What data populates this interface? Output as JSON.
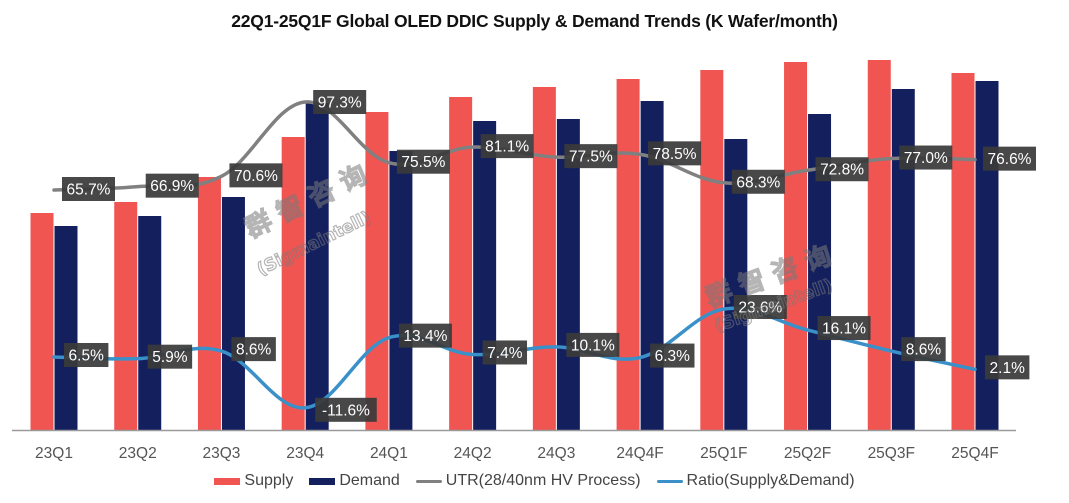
{
  "chart_data": {
    "type": "bar",
    "title": "22Q1-25Q1F Global OLED DDIC Supply & Demand Trends (K Wafer/month)",
    "xlabel": "",
    "ylabel": "",
    "grid": false,
    "legend_position": "bottom",
    "categories": [
      "23Q1",
      "23Q2",
      "23Q3",
      "23Q4",
      "24Q1",
      "24Q2",
      "24Q3",
      "24Q4F",
      "25Q1F",
      "25Q2F",
      "25Q3F",
      "25Q4F"
    ],
    "note": "Bar values are unlabeled in the source; values below are estimated relative heights (arbitrary units, baseline 0).",
    "ylim": [
      0,
      380
    ],
    "series": [
      {
        "name": "Supply",
        "type": "bar",
        "color": "#F05552",
        "values": [
          217,
          228,
          253,
          293,
          318,
          333,
          343,
          351,
          360,
          368,
          370,
          357
        ]
      },
      {
        "name": "Demand",
        "type": "bar",
        "color": "#14205E",
        "values": [
          204,
          214,
          233,
          327,
          279,
          309,
          311,
          329,
          291,
          316,
          341,
          349
        ]
      },
      {
        "name": "UTR(28/40nm HV Process)",
        "type": "line",
        "color": "#808080",
        "values": [
          65.7,
          66.9,
          70.6,
          97.3,
          75.5,
          81.1,
          77.5,
          78.5,
          68.3,
          72.8,
          77.0,
          76.6
        ],
        "labels": [
          "65.7%",
          "66.9%",
          "70.6%",
          "97.3%",
          "75.5%",
          "81.1%",
          "77.5%",
          "78.5%",
          "68.3%",
          "72.8%",
          "77.0%",
          "76.6%"
        ]
      },
      {
        "name": "Ratio(Supply&Demand)",
        "type": "line",
        "color": "#3A90C8",
        "values": [
          6.5,
          5.9,
          8.6,
          -11.6,
          13.4,
          7.4,
          10.1,
          6.3,
          23.6,
          16.1,
          8.6,
          2.1
        ],
        "labels": [
          "6.5%",
          "5.9%",
          "8.6%",
          "-11.6%",
          "13.4%",
          "7.4%",
          "10.1%",
          "6.3%",
          "23.6%",
          "16.1%",
          "8.6%",
          "2.1%"
        ]
      }
    ],
    "data_label_style": {
      "background": "#3A3A3A",
      "text_color": "#FFFFFF"
    }
  },
  "watermark": {
    "line1": "群 智 咨 询",
    "line2": "(Sigmaintell)"
  }
}
